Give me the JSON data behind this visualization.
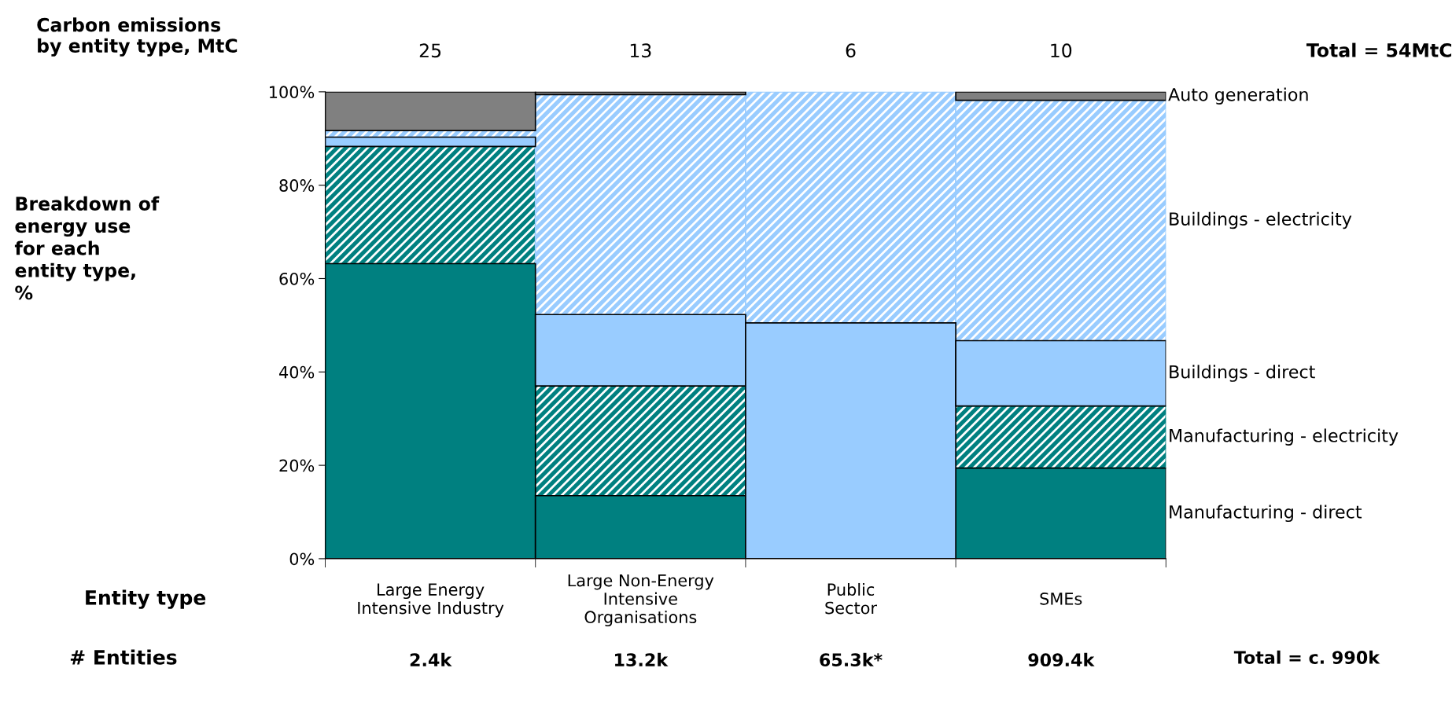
{
  "chart_data": {
    "type": "bar",
    "stacked": true,
    "title": "Carbon emissions\nby entity type, MtC",
    "subtitle": "Total = 54MtC",
    "xlabel": "Entity type",
    "categories": [
      "Large Energy\nIntensive Industry",
      "Large Non-Energy\nIntensive\nOrganisations",
      "Public\nSector",
      "SMEs"
    ],
    "series": [
      {
        "name": "Manufacturing - direct",
        "color": "#008080",
        "values": [
          63.2,
          13.5,
          0,
          19.4
        ]
      },
      {
        "name": "Manufacturing - electricity",
        "color": "#008080",
        "values": [
          25.1,
          23.5,
          0,
          13.3
        ]
      },
      {
        "name": "Buildings - direct",
        "color": "#99ccff",
        "values": [
          2.0,
          15.3,
          50.5,
          14.0
        ]
      },
      {
        "name": "Buildings - electricity",
        "color": "#99ccff",
        "values": [
          1.4,
          47.1,
          49.5,
          51.5
        ]
      },
      {
        "name": "Auto generation",
        "color": "#808080",
        "values": [
          8.3,
          0.6,
          0,
          1.8
        ]
      }
    ],
    "ylim": [
      0,
      100
    ],
    "yticks": [
      {
        "value": 0,
        "label": "0%"
      },
      {
        "value": 20,
        "label": "20%"
      },
      {
        "value": 40,
        "label": "40%"
      },
      {
        "value": 60,
        "label": "60%"
      },
      {
        "value": 80,
        "label": "80%"
      },
      {
        "value": 100,
        "label": "100%"
      }
    ],
    "legend": "right",
    "grid": false,
    "annotations": [
      "25",
      "13",
      "6",
      "10",
      "2.4k",
      "13.2k",
      "65.3k*",
      "909.4k",
      "Breakdown of\nenergy use\nfor each\nentity type,\n%",
      "# Entities",
      "Total = c. 990k"
    ]
  }
}
